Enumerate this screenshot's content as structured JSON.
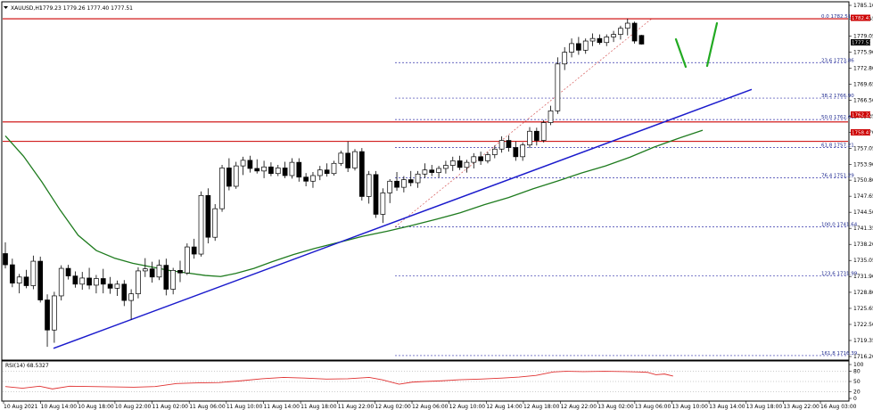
{
  "header": {
    "symbol": "XAUUSD,H1",
    "ohlc": "1779.23 1779.26 1777.40 1777.51"
  },
  "rsi_label": "RSI(14) 68.5327",
  "price_tags": {
    "last": "1777.51",
    "res_top": "1782.47",
    "res_mid": "1762.22",
    "res_low": "1758.41"
  },
  "colors": {
    "candle": "#000000",
    "resistance": "#cc0000",
    "trendline": "#1a1acc",
    "moving_average": "#1e7b1e",
    "fib": "#3333aa",
    "rsi": "#e03030",
    "arrows": "#22aa22"
  },
  "chart_data": {
    "type": "candlestick",
    "main_yticks": [
      "1785.10",
      "1782.45",
      "1779.05",
      "1775.90",
      "1772.80",
      "1769.65",
      "1766.50",
      "1763.35",
      "1760.20",
      "1757.05",
      "1753.90",
      "1750.80",
      "1747.65",
      "1744.50",
      "1741.35",
      "1738.20",
      "1735.05",
      "1731.90",
      "1728.80",
      "1725.65",
      "1722.50",
      "1719.35",
      "1716.20"
    ],
    "rsi_yticks": [
      "100",
      "80",
      "50",
      "20",
      "0"
    ],
    "xticks": [
      "10 Aug 2021",
      "10 Aug 14:00",
      "10 Aug 18:00",
      "10 Aug 22:00",
      "11 Aug 02:00",
      "11 Aug 06:00",
      "11 Aug 10:00",
      "11 Aug 14:00",
      "11 Aug 18:00",
      "11 Aug 22:00",
      "12 Aug 02:00",
      "12 Aug 06:00",
      "12 Aug 10:00",
      "12 Aug 14:00",
      "12 Aug 18:00",
      "12 Aug 22:00",
      "13 Aug 02:00",
      "13 Aug 06:00",
      "13 Aug 10:00",
      "13 Aug 14:00",
      "13 Aug 18:00",
      "13 Aug 22:00",
      "16 Aug 03:00"
    ],
    "horizontal_levels": [
      1782.47,
      1762.22,
      1758.41
    ],
    "trendline": {
      "start": 1717.8,
      "end": 1768.6
    },
    "fibonacci": [
      {
        "label": "0.0 1782.51",
        "price": 1782.51
      },
      {
        "label": "23.6 1773.86",
        "price": 1773.86
      },
      {
        "label": "38.2 1766.90",
        "price": 1766.9
      },
      {
        "label": "50.0 1762.69",
        "price": 1762.69
      },
      {
        "label": "61.8 1757.21",
        "price": 1757.21
      },
      {
        "label": "76.4 1751.29",
        "price": 1751.29
      },
      {
        "label": "100.0 1741.64",
        "price": 1741.64
      },
      {
        "label": "123.6 1731.99",
        "price": 1731.99
      },
      {
        "label": "161.8 1716.39",
        "price": 1716.39
      }
    ],
    "candles": [
      [
        1736.4,
        1738.6,
        1733.5,
        1734.2
      ],
      [
        1734.2,
        1735.4,
        1729.8,
        1730.6
      ],
      [
        1730.6,
        1732.4,
        1728.6,
        1731.8
      ],
      [
        1731.8,
        1733.2,
        1729.6,
        1730.1
      ],
      [
        1730.1,
        1736.0,
        1729.4,
        1734.9
      ],
      [
        1734.9,
        1735.8,
        1726.8,
        1727.3
      ],
      [
        1727.3,
        1728.4,
        1718.1,
        1721.4
      ],
      [
        1721.4,
        1728.9,
        1718.9,
        1728.1
      ],
      [
        1728.1,
        1734.1,
        1727.2,
        1733.5
      ],
      [
        1733.5,
        1734.2,
        1731.3,
        1732.0
      ],
      [
        1732.0,
        1732.9,
        1729.7,
        1730.4
      ],
      [
        1730.4,
        1732.8,
        1729.3,
        1731.6
      ],
      [
        1731.6,
        1733.6,
        1729.4,
        1730.2
      ],
      [
        1730.2,
        1732.2,
        1728.6,
        1731.5
      ],
      [
        1731.5,
        1733.4,
        1728.6,
        1730.4
      ],
      [
        1730.4,
        1731.8,
        1728.5,
        1729.6
      ],
      [
        1729.6,
        1731.1,
        1728.1,
        1730.4
      ],
      [
        1730.4,
        1731.2,
        1726.1,
        1727.2
      ],
      [
        1727.2,
        1729.4,
        1723.4,
        1728.5
      ],
      [
        1728.5,
        1733.7,
        1727.6,
        1733.0
      ],
      [
        1733.0,
        1735.5,
        1731.8,
        1733.4
      ],
      [
        1733.4,
        1734.8,
        1730.7,
        1731.8
      ],
      [
        1731.8,
        1735.2,
        1731.2,
        1734.1
      ],
      [
        1734.1,
        1735.4,
        1728.2,
        1729.4
      ],
      [
        1729.4,
        1733.6,
        1728.4,
        1733.1
      ],
      [
        1733.1,
        1735.0,
        1730.8,
        1732.6
      ],
      [
        1732.6,
        1738.4,
        1732.2,
        1737.7
      ],
      [
        1737.7,
        1739.3,
        1735.4,
        1736.3
      ],
      [
        1736.3,
        1748.6,
        1735.8,
        1747.8
      ],
      [
        1747.8,
        1749.2,
        1738.4,
        1739.6
      ],
      [
        1739.6,
        1746.1,
        1738.9,
        1745.2
      ],
      [
        1745.2,
        1753.8,
        1744.6,
        1753.2
      ],
      [
        1753.2,
        1755.1,
        1748.8,
        1749.6
      ],
      [
        1749.6,
        1754.4,
        1749.1,
        1753.6
      ],
      [
        1753.6,
        1755.4,
        1751.8,
        1754.7
      ],
      [
        1754.7,
        1755.6,
        1752.3,
        1753.1
      ],
      [
        1753.1,
        1754.9,
        1752.1,
        1752.6
      ],
      [
        1752.6,
        1754.6,
        1751.2,
        1753.4
      ],
      [
        1753.4,
        1754.3,
        1751.6,
        1752.1
      ],
      [
        1752.1,
        1753.8,
        1751.6,
        1753.2
      ],
      [
        1753.2,
        1754.4,
        1751.2,
        1751.7
      ],
      [
        1751.7,
        1755.1,
        1751.1,
        1754.3
      ],
      [
        1754.3,
        1755.1,
        1750.5,
        1751.4
      ],
      [
        1751.4,
        1752.2,
        1749.6,
        1750.6
      ],
      [
        1750.6,
        1752.4,
        1749.3,
        1751.7
      ],
      [
        1751.7,
        1753.6,
        1750.8,
        1752.8
      ],
      [
        1752.8,
        1754.1,
        1751.5,
        1752.1
      ],
      [
        1752.1,
        1754.6,
        1751.7,
        1754.1
      ],
      [
        1754.1,
        1756.6,
        1753.6,
        1756.1
      ],
      [
        1756.1,
        1758.4,
        1752.4,
        1753.2
      ],
      [
        1753.2,
        1756.9,
        1752.7,
        1756.4
      ],
      [
        1756.4,
        1757.1,
        1746.8,
        1747.6
      ],
      [
        1747.6,
        1752.6,
        1746.2,
        1751.9
      ],
      [
        1751.9,
        1752.6,
        1743.4,
        1744.1
      ],
      [
        1744.1,
        1749.2,
        1742.4,
        1748.3
      ],
      [
        1748.3,
        1751.0,
        1746.3,
        1750.6
      ],
      [
        1750.6,
        1752.4,
        1748.7,
        1749.4
      ],
      [
        1749.4,
        1751.6,
        1748.4,
        1750.9
      ],
      [
        1750.9,
        1752.6,
        1749.6,
        1750.3
      ],
      [
        1750.3,
        1752.6,
        1749.3,
        1752.0
      ],
      [
        1752.0,
        1754.1,
        1751.2,
        1752.8
      ],
      [
        1752.8,
        1753.8,
        1751.6,
        1752.3
      ],
      [
        1752.3,
        1753.6,
        1751.3,
        1753.1
      ],
      [
        1753.1,
        1754.6,
        1752.1,
        1753.7
      ],
      [
        1753.7,
        1755.4,
        1752.6,
        1754.6
      ],
      [
        1754.6,
        1755.6,
        1752.8,
        1753.3
      ],
      [
        1753.3,
        1754.8,
        1752.3,
        1754.3
      ],
      [
        1754.3,
        1756.1,
        1753.1,
        1755.4
      ],
      [
        1755.4,
        1756.4,
        1753.8,
        1754.6
      ],
      [
        1754.6,
        1756.3,
        1754.1,
        1755.8
      ],
      [
        1755.8,
        1757.6,
        1755.1,
        1756.9
      ],
      [
        1756.9,
        1759.4,
        1756.2,
        1758.6
      ],
      [
        1758.6,
        1759.6,
        1756.4,
        1757.2
      ],
      [
        1757.2,
        1758.4,
        1754.6,
        1755.4
      ],
      [
        1755.4,
        1758.2,
        1754.6,
        1757.7
      ],
      [
        1757.7,
        1761.2,
        1757.1,
        1760.4
      ],
      [
        1760.4,
        1761.1,
        1757.6,
        1758.6
      ],
      [
        1758.6,
        1762.6,
        1758.2,
        1762.1
      ],
      [
        1762.1,
        1765.4,
        1761.6,
        1764.4
      ],
      [
        1764.4,
        1774.9,
        1763.8,
        1773.6
      ],
      [
        1773.6,
        1776.9,
        1772.4,
        1775.9
      ],
      [
        1775.9,
        1778.6,
        1774.9,
        1777.6
      ],
      [
        1777.6,
        1778.9,
        1775.4,
        1776.3
      ],
      [
        1776.3,
        1778.6,
        1775.6,
        1778.1
      ],
      [
        1778.1,
        1779.6,
        1777.1,
        1778.6
      ],
      [
        1778.6,
        1779.4,
        1777.4,
        1777.8
      ],
      [
        1777.8,
        1779.4,
        1777.1,
        1778.9
      ],
      [
        1778.9,
        1780.1,
        1777.9,
        1779.4
      ],
      [
        1779.4,
        1781.1,
        1778.4,
        1780.6
      ],
      [
        1780.6,
        1782.5,
        1779.2,
        1781.6
      ],
      [
        1781.6,
        1781.9,
        1777.6,
        1778.1
      ],
      [
        1779.2,
        1779.3,
        1777.4,
        1777.5
      ]
    ],
    "moving_average": [
      [
        0,
        1759.5
      ],
      [
        6,
        1755.5
      ],
      [
        12,
        1750.5
      ],
      [
        18,
        1745.0
      ],
      [
        24,
        1740.0
      ],
      [
        30,
        1737.0
      ],
      [
        36,
        1735.5
      ],
      [
        42,
        1734.5
      ],
      [
        48,
        1733.8
      ],
      [
        54,
        1733.1
      ],
      [
        60,
        1732.6
      ],
      [
        66,
        1732.1
      ],
      [
        71,
        1731.9
      ],
      [
        76,
        1732.5
      ],
      [
        82,
        1733.5
      ],
      [
        88,
        1734.8
      ],
      [
        95,
        1736.2
      ],
      [
        102,
        1737.4
      ],
      [
        110,
        1738.6
      ],
      [
        118,
        1739.8
      ],
      [
        126,
        1740.8
      ],
      [
        134,
        1741.9
      ],
      [
        142,
        1743.1
      ],
      [
        150,
        1744.4
      ],
      [
        158,
        1746.0
      ],
      [
        166,
        1747.4
      ],
      [
        174,
        1749.1
      ],
      [
        182,
        1750.6
      ],
      [
        190,
        1752.2
      ],
      [
        198,
        1753.6
      ],
      [
        206,
        1755.3
      ],
      [
        214,
        1757.3
      ],
      [
        222,
        1759.0
      ],
      [
        230,
        1760.6
      ]
    ],
    "rsi": [
      [
        0,
        35
      ],
      [
        8,
        30
      ],
      [
        16,
        36
      ],
      [
        22,
        28
      ],
      [
        30,
        36
      ],
      [
        40,
        35
      ],
      [
        50,
        34
      ],
      [
        60,
        33
      ],
      [
        70,
        35
      ],
      [
        80,
        44
      ],
      [
        90,
        46
      ],
      [
        100,
        47
      ],
      [
        110,
        52
      ],
      [
        120,
        58
      ],
      [
        130,
        62
      ],
      [
        140,
        60
      ],
      [
        150,
        57
      ],
      [
        160,
        58
      ],
      [
        170,
        62
      ],
      [
        176,
        55
      ],
      [
        184,
        42
      ],
      [
        190,
        48
      ],
      [
        196,
        50
      ],
      [
        204,
        52
      ],
      [
        212,
        55
      ],
      [
        222,
        57
      ],
      [
        232,
        60
      ],
      [
        240,
        63
      ],
      [
        248,
        68
      ],
      [
        256,
        78
      ],
      [
        262,
        80
      ],
      [
        270,
        79
      ],
      [
        280,
        80
      ],
      [
        290,
        79
      ],
      [
        296,
        78
      ],
      [
        300,
        77
      ],
      [
        304,
        70
      ],
      [
        308,
        72
      ],
      [
        312,
        66
      ]
    ]
  }
}
